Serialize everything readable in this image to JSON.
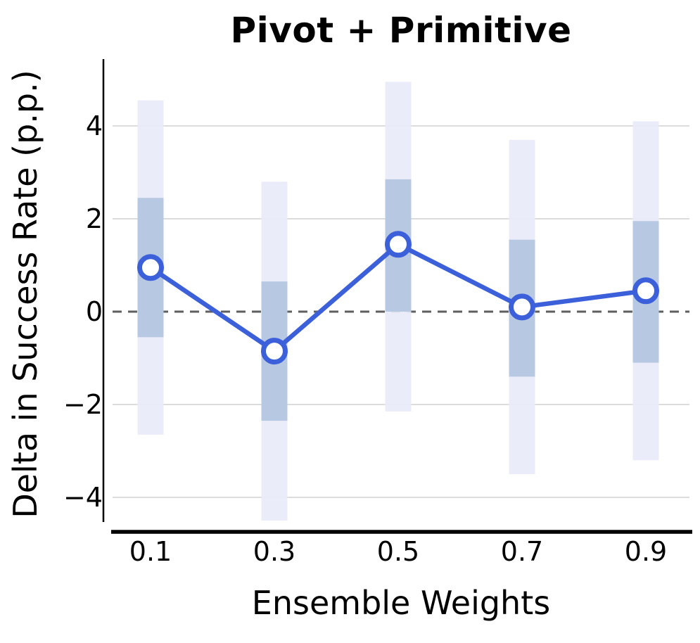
{
  "figure": {
    "title": "Pivot + Primitive",
    "x_axis_label": "Ensemble Weights",
    "y_axis_label": "Delta in Success Rate (p.p.)"
  },
  "chart_data": {
    "type": "line",
    "title": "Pivot + Primitive",
    "xlabel": "Ensemble Weights",
    "ylabel": "Delta in Success Rate (p.p.)",
    "x_categories": [
      "0.1",
      "0.3",
      "0.5",
      "0.7",
      "0.9"
    ],
    "x_values": [
      0.1,
      0.3,
      0.5,
      0.7,
      0.9
    ],
    "series": [
      {
        "name": "delta-in-success-rate",
        "values": [
          0.95,
          -0.85,
          1.45,
          0.1,
          0.45
        ]
      }
    ],
    "inner_interval": [
      [
        -0.55,
        2.45
      ],
      [
        -2.35,
        0.65
      ],
      [
        0.0,
        2.85
      ],
      [
        -1.4,
        1.55
      ],
      [
        -1.1,
        1.95
      ]
    ],
    "outer_interval": [
      [
        -2.65,
        4.55
      ],
      [
        -4.5,
        2.8
      ],
      [
        -2.15,
        4.95
      ],
      [
        -3.5,
        3.7
      ],
      [
        -3.2,
        4.1
      ]
    ],
    "y_ticks": [
      4,
      2,
      0,
      -2,
      -4
    ],
    "y_tick_labels": [
      "4",
      "2",
      "0",
      "−2",
      "−4"
    ],
    "ylim": [
      -4.75,
      5.4
    ],
    "zero_line": true,
    "grid": true,
    "legend": false,
    "colors": {
      "line": "#3b60d9",
      "marker_fill": "#ffffff",
      "inner_band": "#b4c6e0",
      "outer_band": "#e9eaf8",
      "gridline": "#dcdcdc",
      "zero_line": "#5f5f5f",
      "axis": "#000000",
      "text": "#000000"
    }
  }
}
